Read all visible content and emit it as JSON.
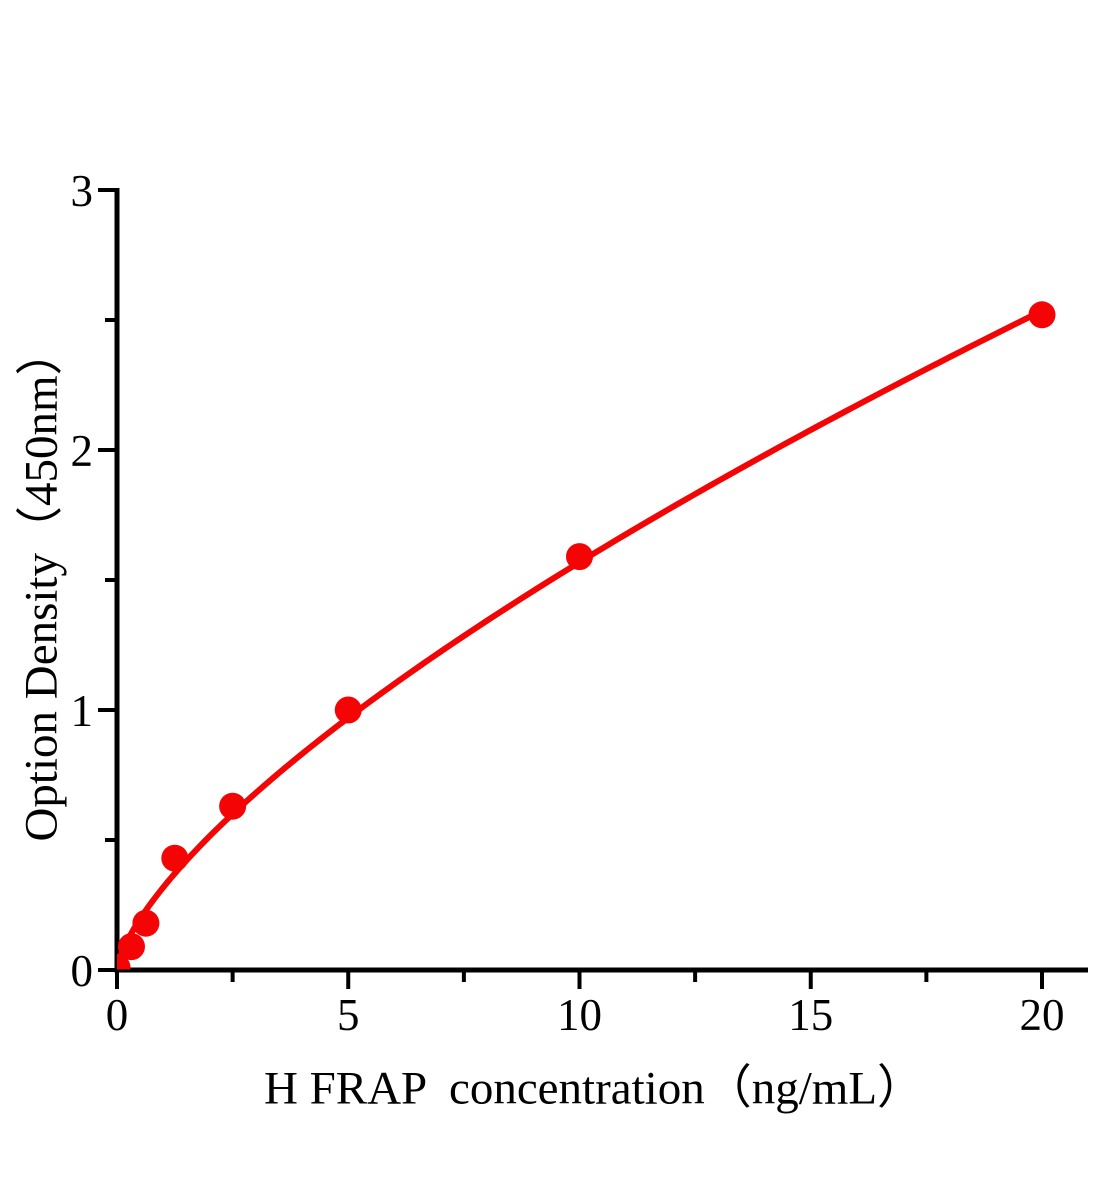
{
  "figure": {
    "background": "#ffffff"
  },
  "chart_data": {
    "type": "scatter",
    "title": "",
    "xlabel": "H FRAP  concentration（ng/mL）",
    "ylabel": "Option Density（450nm）",
    "points": [
      {
        "x": 0,
        "y": 0.01
      },
      {
        "x": 0.313,
        "y": 0.09
      },
      {
        "x": 0.625,
        "y": 0.18
      },
      {
        "x": 1.25,
        "y": 0.43
      },
      {
        "x": 2.5,
        "y": 0.63
      },
      {
        "x": 5,
        "y": 1.0
      },
      {
        "x": 10,
        "y": 1.59
      },
      {
        "x": 20,
        "y": 2.52
      }
    ],
    "fit": {
      "type": "power",
      "a": 0.318,
      "b": 0.693
    },
    "xlim": [
      0,
      21
    ],
    "ylim": [
      0,
      3
    ],
    "x_major_ticks": [
      0,
      5,
      10,
      15,
      20
    ],
    "x_minor_ticks": [
      2.5,
      7.5,
      12.5,
      17.5
    ],
    "y_major_ticks": [
      0,
      1,
      2,
      3
    ],
    "y_minor_ticks": [
      0.5,
      1.5,
      2.5
    ],
    "grid": false,
    "legend": null,
    "colors": {
      "series": "#f40404",
      "axis": "#000000",
      "text": "#000000"
    }
  }
}
